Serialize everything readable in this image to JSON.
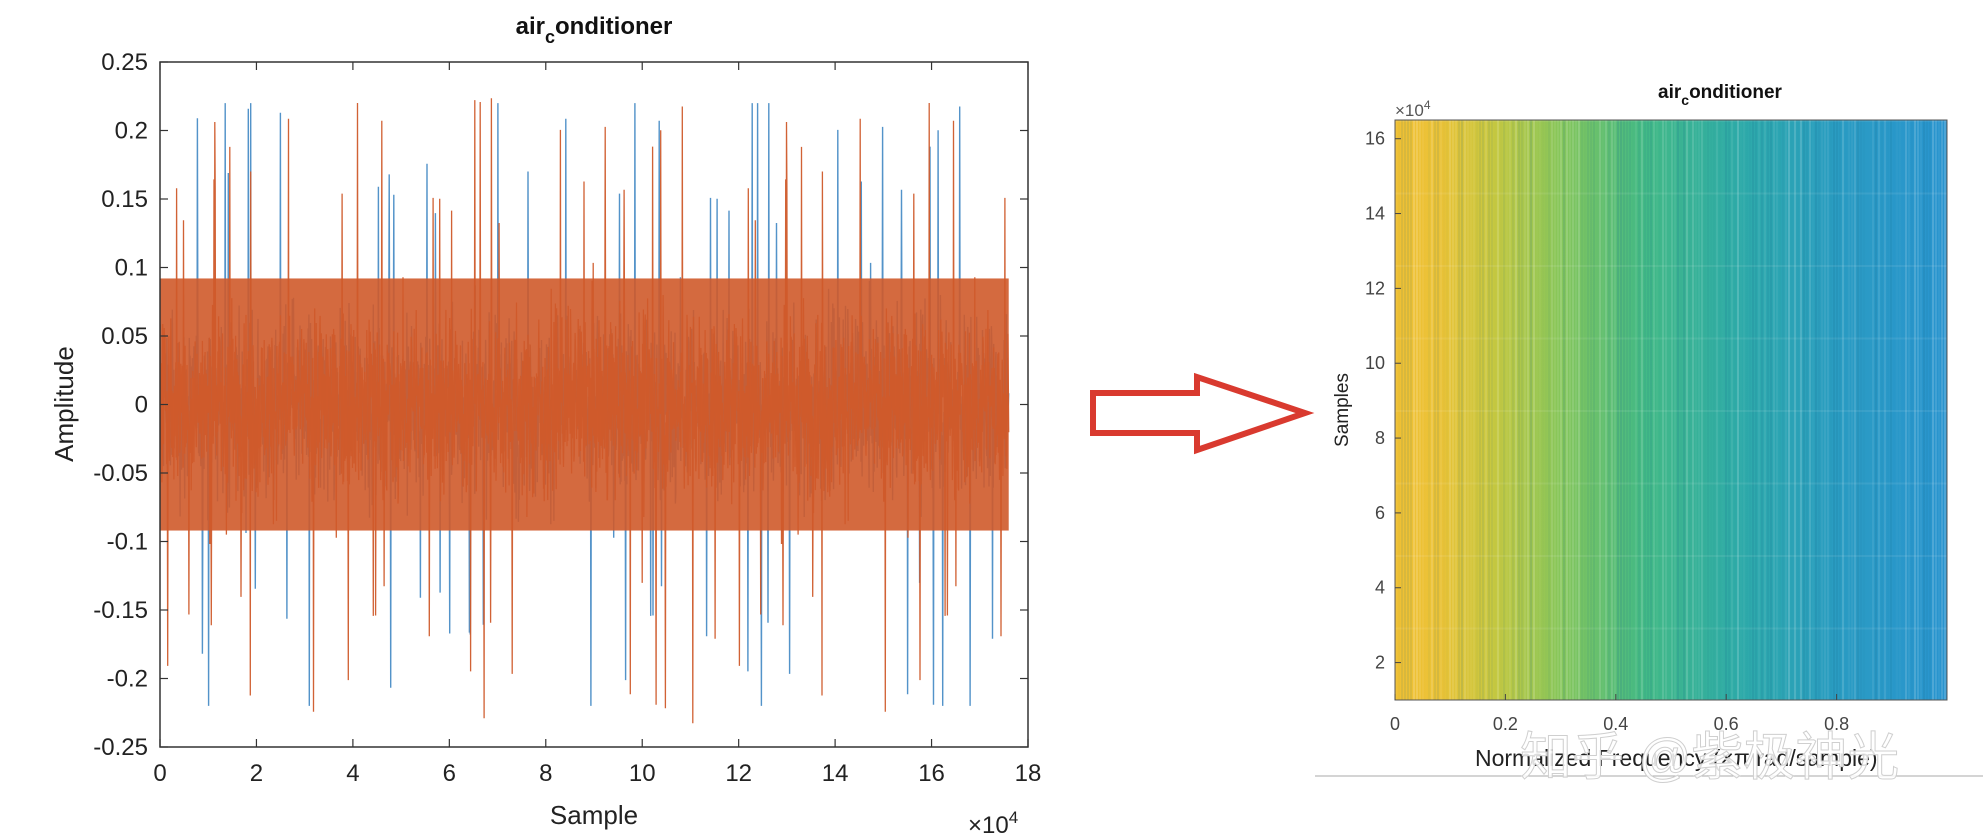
{
  "chart_data": [
    {
      "type": "line",
      "title": "air_conditioner",
      "title_main": "air",
      "title_sub": "c",
      "title_rest": "onditioner",
      "xlabel": "Sample",
      "ylabel": "Amplitude",
      "x_multiplier": "×10",
      "x_multiplier_exp": "4",
      "xlim": [
        0,
        18
      ],
      "ylim": [
        -0.25,
        0.25
      ],
      "x_ticks": [
        "0",
        "2",
        "4",
        "6",
        "8",
        "10",
        "12",
        "14",
        "16",
        "18"
      ],
      "y_ticks": [
        "0.25",
        "0.2",
        "0.15",
        "0.1",
        "0.05",
        "0",
        "-0.05",
        "-0.1",
        "-0.15",
        "-0.2",
        "-0.25"
      ],
      "x_data_end": 17.6,
      "series": [
        {
          "color": "#4a8dc6",
          "peak_envelope": 0.22,
          "dense_band": 0.1
        },
        {
          "color": "#cf5a2a",
          "peak_envelope": 0.24,
          "dense_band": 0.1
        }
      ]
    },
    {
      "type": "heatmap",
      "title": "air_conditioner",
      "title_main": "air",
      "title_sub": "c",
      "title_rest": "onditioner",
      "xlabel": "Normalized Frequency (×π rad/sample)",
      "ylabel": "Samples",
      "y_multiplier": "×10",
      "y_multiplier_exp": "4",
      "xlim": [
        0,
        1
      ],
      "ylim": [
        1,
        16.5
      ],
      "x_ticks": [
        "0",
        "0.2",
        "0.4",
        "0.6",
        "0.8"
      ],
      "y_ticks": [
        "16",
        "14",
        "12",
        "10",
        "8",
        "6",
        "4",
        "2"
      ],
      "colormap": [
        "#f0c033",
        "#e9c23a",
        "#a3c64a",
        "#62bf6a",
        "#31b39a",
        "#2aa4b8",
        "#2996cc"
      ]
    }
  ],
  "arrow": {
    "color": "#d93a2f"
  },
  "watermark": "知乎 @紫极神光"
}
